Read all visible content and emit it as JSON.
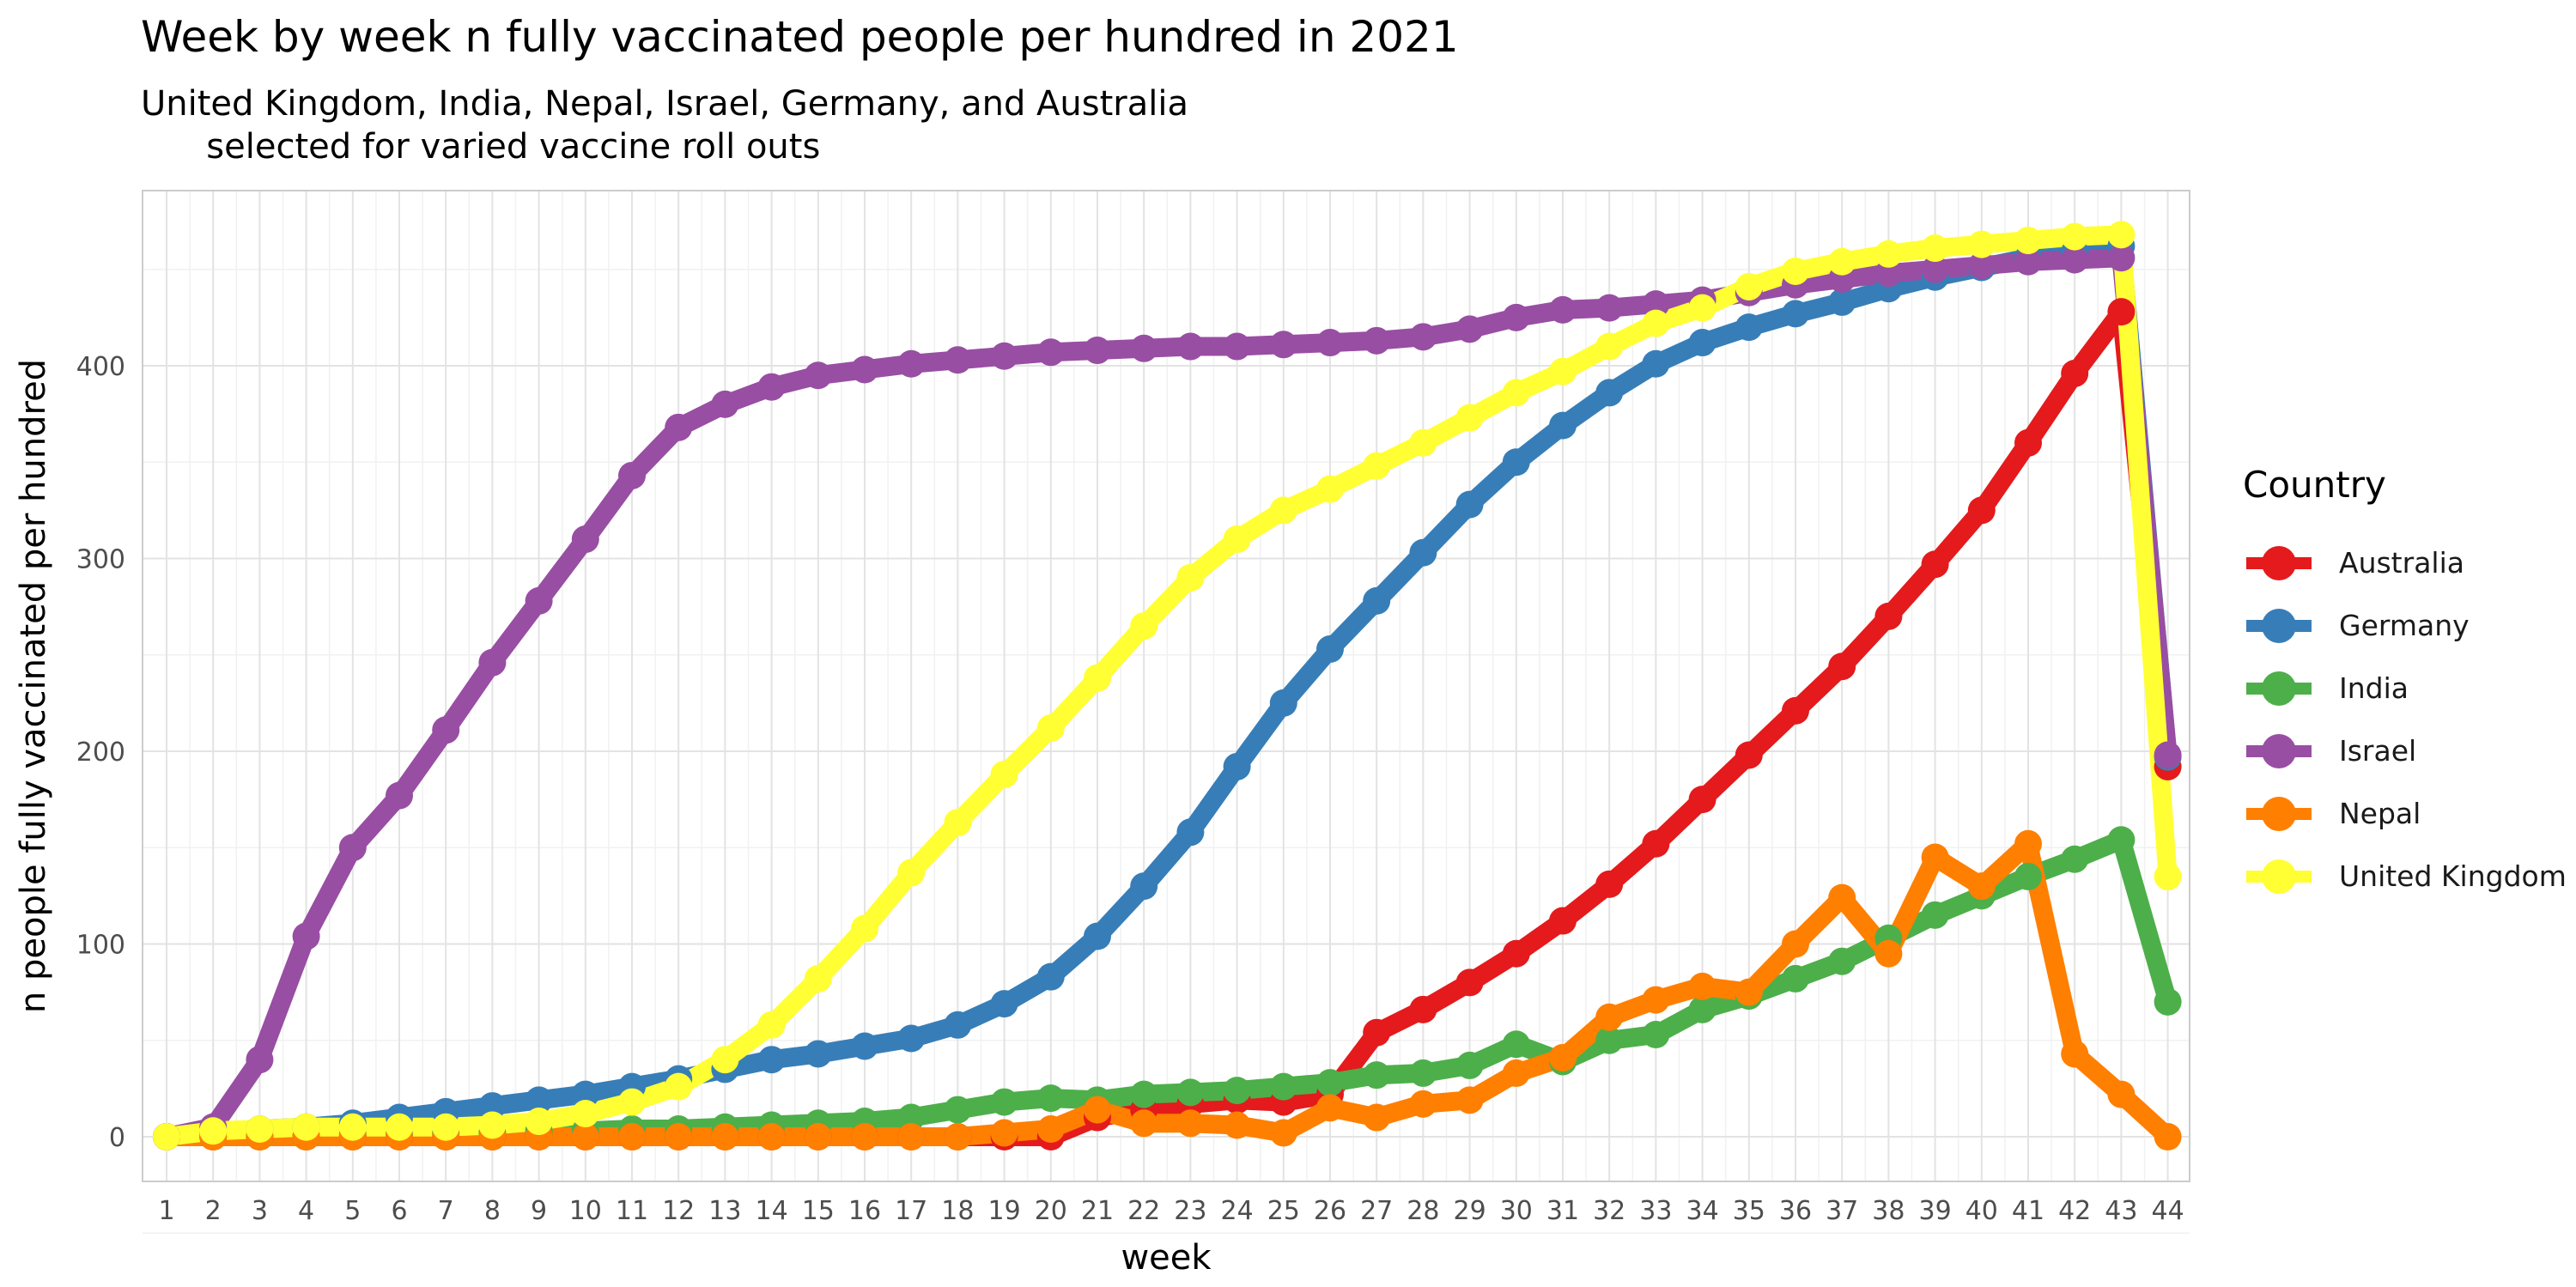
{
  "chart_data": {
    "type": "line",
    "title": "Week by week n fully vaccinated people per hundred in 2021",
    "subtitle": "United Kingdom, India, Nepal, Israel, Germany, and Australia\n      selected for varied vaccine roll outs",
    "xlabel": "week",
    "ylabel": "n people fully vaccinated per hundred",
    "x": [
      1,
      2,
      3,
      4,
      5,
      6,
      7,
      8,
      9,
      10,
      11,
      12,
      13,
      14,
      15,
      16,
      17,
      18,
      19,
      20,
      21,
      22,
      23,
      24,
      25,
      26,
      27,
      28,
      29,
      30,
      31,
      32,
      33,
      34,
      35,
      36,
      37,
      38,
      39,
      40,
      41,
      42,
      43,
      44
    ],
    "xlim": [
      1,
      44
    ],
    "ylim": [
      -20,
      490
    ],
    "y_ticks": [
      0,
      100,
      200,
      300,
      400
    ],
    "grid": true,
    "legend": {
      "title": "Country",
      "position": "right"
    },
    "series": [
      {
        "name": "Australia",
        "color": "#E41A1C",
        "values": [
          0,
          0,
          0,
          0,
          0,
          0,
          0,
          0,
          0,
          0,
          0,
          0,
          0,
          0,
          0,
          0,
          0,
          0,
          0,
          0,
          10,
          14,
          17,
          19,
          18,
          22,
          54,
          66,
          80,
          95,
          112,
          131,
          152,
          175,
          198,
          221,
          244,
          270,
          297,
          325,
          360,
          396,
          428,
          192
        ]
      },
      {
        "name": "Germany",
        "color": "#377EB8",
        "values": [
          0,
          2,
          4,
          5,
          7,
          10,
          13,
          16,
          19,
          22,
          26,
          30,
          35,
          40,
          43,
          47,
          51,
          58,
          69,
          83,
          104,
          130,
          158,
          192,
          225,
          253,
          278,
          303,
          328,
          350,
          369,
          386,
          401,
          412,
          420,
          427,
          433,
          440,
          446,
          451,
          456,
          459,
          462,
          197
        ]
      },
      {
        "name": "India",
        "color": "#4DAF4A",
        "values": [
          0,
          0,
          0,
          0,
          1,
          1,
          2,
          2,
          3,
          3,
          4,
          4,
          5,
          6,
          7,
          8,
          10,
          14,
          18,
          20,
          19,
          22,
          23,
          24,
          26,
          28,
          32,
          33,
          37,
          48,
          39,
          50,
          53,
          66,
          73,
          82,
          91,
          103,
          115,
          125,
          135,
          144,
          154,
          70
        ]
      },
      {
        "name": "Israel",
        "color": "#984EA3",
        "values": [
          0,
          5,
          40,
          104,
          150,
          177,
          211,
          246,
          278,
          310,
          343,
          368,
          380,
          389,
          395,
          398,
          401,
          403,
          405,
          407,
          408,
          409,
          410,
          410,
          411,
          412,
          413,
          415,
          419,
          425,
          429,
          430,
          432,
          434,
          438,
          442,
          445,
          448,
          450,
          452,
          454,
          455,
          456,
          198
        ]
      },
      {
        "name": "Nepal",
        "color": "#FF7F00",
        "values": [
          0,
          0,
          0,
          0,
          0,
          0,
          0,
          0,
          0,
          0,
          0,
          0,
          0,
          0,
          0,
          0,
          0,
          0,
          2,
          4,
          14,
          7,
          7,
          6,
          2,
          15,
          10,
          17,
          19,
          33,
          41,
          62,
          71,
          78,
          75,
          100,
          124,
          95,
          145,
          130,
          152,
          43,
          22,
          0
        ]
      },
      {
        "name": "United Kingdom",
        "color": "#FFFF33",
        "values": [
          0,
          3,
          4,
          5,
          5,
          5,
          5,
          6,
          8,
          12,
          18,
          26,
          40,
          58,
          82,
          108,
          137,
          163,
          188,
          212,
          238,
          265,
          290,
          310,
          325,
          336,
          348,
          360,
          373,
          386,
          397,
          410,
          422,
          430,
          441,
          449,
          454,
          458,
          461,
          463,
          465,
          467,
          468,
          135
        ]
      }
    ]
  }
}
